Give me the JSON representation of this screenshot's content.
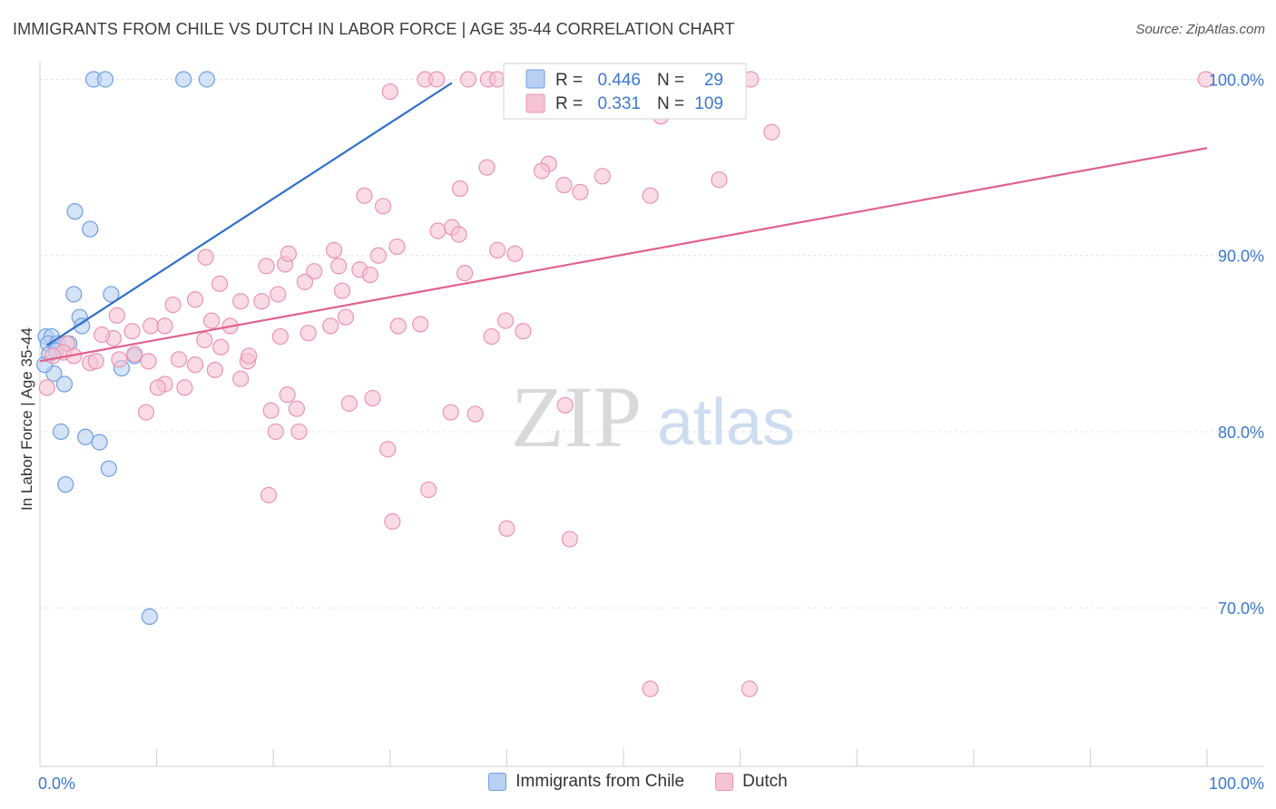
{
  "title": "IMMIGRANTS FROM CHILE VS DUTCH IN LABOR FORCE | AGE 35-44 CORRELATION CHART",
  "source": "Source: ZipAtlas.com",
  "watermark": {
    "zip": "ZIP",
    "atlas": "atlas"
  },
  "colors": {
    "blue_fill": "#b8d1f3",
    "blue_stroke": "#6f9fe0",
    "blue_line": "#2f6fcc",
    "pink_fill": "#f6c3d3",
    "pink_stroke": "#eb94b0",
    "pink_line": "#e0628b",
    "axis_text": "#3b78d0"
  },
  "stats": {
    "blue": {
      "r_label": "R =",
      "r": "0.446",
      "n_label": "N =",
      "n": "29"
    },
    "pink": {
      "r_label": "R =",
      "r": "0.331",
      "n_label": "N =",
      "n": "109"
    }
  },
  "legend": {
    "blue": "Immigrants from Chile",
    "pink": "Dutch"
  },
  "chart_data": {
    "type": "scatter",
    "xlabel": "",
    "ylabel": "In Labor Force | Age 35-44",
    "xlim": [
      0,
      100
    ],
    "ylim": [
      61,
      100.9
    ],
    "x_tick_labels": [
      {
        "value": 0,
        "label": "0.0%"
      },
      {
        "value": 100,
        "label": "100.0%"
      }
    ],
    "y_tick_labels": [
      {
        "value": 100,
        "label": "100.0%"
      },
      {
        "value": 90,
        "label": "90.0%"
      },
      {
        "value": 80,
        "label": "80.0%"
      },
      {
        "value": 70,
        "label": "70.0%"
      }
    ],
    "grid": true,
    "legend_position": "bottom",
    "series": [
      {
        "name": "Immigrants from Chile",
        "color": "blue",
        "trend": {
          "x": [
            0.6,
            35.3
          ],
          "y": [
            84.9,
            99.8
          ]
        },
        "points": [
          [
            4.6,
            100
          ],
          [
            5.6,
            100
          ],
          [
            12.3,
            100
          ],
          [
            14.3,
            100
          ],
          [
            40.3,
            100
          ],
          [
            3.0,
            92.5
          ],
          [
            4.3,
            91.5
          ],
          [
            2.9,
            87.8
          ],
          [
            6.1,
            87.8
          ],
          [
            3.4,
            86.5
          ],
          [
            3.6,
            86.0
          ],
          [
            0.5,
            85.4
          ],
          [
            1.0,
            85.4
          ],
          [
            0.7,
            85.0
          ],
          [
            1.5,
            85.0
          ],
          [
            2.5,
            85.0
          ],
          [
            0.8,
            84.4
          ],
          [
            1.4,
            84.6
          ],
          [
            8.1,
            84.3
          ],
          [
            1.2,
            83.3
          ],
          [
            7.0,
            83.6
          ],
          [
            2.1,
            82.7
          ],
          [
            1.8,
            80.0
          ],
          [
            3.9,
            79.7
          ],
          [
            5.1,
            79.4
          ],
          [
            5.9,
            77.9
          ],
          [
            2.2,
            77.0
          ],
          [
            9.4,
            69.5
          ],
          [
            0.4,
            83.8
          ]
        ]
      },
      {
        "name": "Dutch",
        "color": "pink",
        "trend": {
          "x": [
            0,
            100
          ],
          "y": [
            84.0,
            96.1
          ]
        },
        "points": [
          [
            33.0,
            100
          ],
          [
            34.0,
            100
          ],
          [
            36.7,
            100
          ],
          [
            38.4,
            100
          ],
          [
            39.2,
            100
          ],
          [
            41.8,
            100
          ],
          [
            43.0,
            100
          ],
          [
            51.0,
            100
          ],
          [
            53.0,
            100
          ],
          [
            55.5,
            100
          ],
          [
            60.9,
            100
          ],
          [
            99.9,
            100
          ],
          [
            30.0,
            99.3
          ],
          [
            44.2,
            99.7
          ],
          [
            52.5,
            99.3
          ],
          [
            53.2,
            97.9
          ],
          [
            62.7,
            97.0
          ],
          [
            38.3,
            95.0
          ],
          [
            43.6,
            95.2
          ],
          [
            43.0,
            94.8
          ],
          [
            36.0,
            93.8
          ],
          [
            44.9,
            94.0
          ],
          [
            46.3,
            93.6
          ],
          [
            48.2,
            94.5
          ],
          [
            58.2,
            94.3
          ],
          [
            27.8,
            93.4
          ],
          [
            29.4,
            92.8
          ],
          [
            52.3,
            93.4
          ],
          [
            34.1,
            91.4
          ],
          [
            35.3,
            91.6
          ],
          [
            35.9,
            91.2
          ],
          [
            14.2,
            89.9
          ],
          [
            19.4,
            89.4
          ],
          [
            21.0,
            89.5
          ],
          [
            21.3,
            90.1
          ],
          [
            25.2,
            90.3
          ],
          [
            30.6,
            90.5
          ],
          [
            29.0,
            90.0
          ],
          [
            23.5,
            89.1
          ],
          [
            25.6,
            89.4
          ],
          [
            27.4,
            89.2
          ],
          [
            28.3,
            88.9
          ],
          [
            36.4,
            89.0
          ],
          [
            39.2,
            90.3
          ],
          [
            40.7,
            90.1
          ],
          [
            15.4,
            88.4
          ],
          [
            17.2,
            87.4
          ],
          [
            19.0,
            87.4
          ],
          [
            20.4,
            87.8
          ],
          [
            22.7,
            88.5
          ],
          [
            25.9,
            88.0
          ],
          [
            11.4,
            87.2
          ],
          [
            13.3,
            87.5
          ],
          [
            6.6,
            86.6
          ],
          [
            9.5,
            86.0
          ],
          [
            10.7,
            86.0
          ],
          [
            14.7,
            86.3
          ],
          [
            16.3,
            86.0
          ],
          [
            24.9,
            86.0
          ],
          [
            26.2,
            86.5
          ],
          [
            30.7,
            86.0
          ],
          [
            32.6,
            86.1
          ],
          [
            38.7,
            85.4
          ],
          [
            39.9,
            86.3
          ],
          [
            41.4,
            85.7
          ],
          [
            14.1,
            85.2
          ],
          [
            15.5,
            84.8
          ],
          [
            20.6,
            85.4
          ],
          [
            23.0,
            85.6
          ],
          [
            7.9,
            85.7
          ],
          [
            6.3,
            85.3
          ],
          [
            5.3,
            85.5
          ],
          [
            2.3,
            85.0
          ],
          [
            2.0,
            84.5
          ],
          [
            1.1,
            84.3
          ],
          [
            2.9,
            84.3
          ],
          [
            4.3,
            83.9
          ],
          [
            4.8,
            84.0
          ],
          [
            6.8,
            84.1
          ],
          [
            8.1,
            84.4
          ],
          [
            9.3,
            84.0
          ],
          [
            11.9,
            84.1
          ],
          [
            13.3,
            83.8
          ],
          [
            15.0,
            83.5
          ],
          [
            17.2,
            83.0
          ],
          [
            17.8,
            84.0
          ],
          [
            17.9,
            84.3
          ],
          [
            10.7,
            82.7
          ],
          [
            10.1,
            82.5
          ],
          [
            12.4,
            82.5
          ],
          [
            21.2,
            82.1
          ],
          [
            22.0,
            81.3
          ],
          [
            26.5,
            81.6
          ],
          [
            9.1,
            81.1
          ],
          [
            19.8,
            81.2
          ],
          [
            28.5,
            81.9
          ],
          [
            35.2,
            81.1
          ],
          [
            37.3,
            81.0
          ],
          [
            45.0,
            81.5
          ],
          [
            20.2,
            80.0
          ],
          [
            22.2,
            80.0
          ],
          [
            29.8,
            79.0
          ],
          [
            33.3,
            76.7
          ],
          [
            19.6,
            76.4
          ],
          [
            30.2,
            74.9
          ],
          [
            40.0,
            74.5
          ],
          [
            45.4,
            73.9
          ],
          [
            52.3,
            65.4
          ],
          [
            60.8,
            65.4
          ],
          [
            0.6,
            82.5
          ]
        ]
      }
    ]
  }
}
